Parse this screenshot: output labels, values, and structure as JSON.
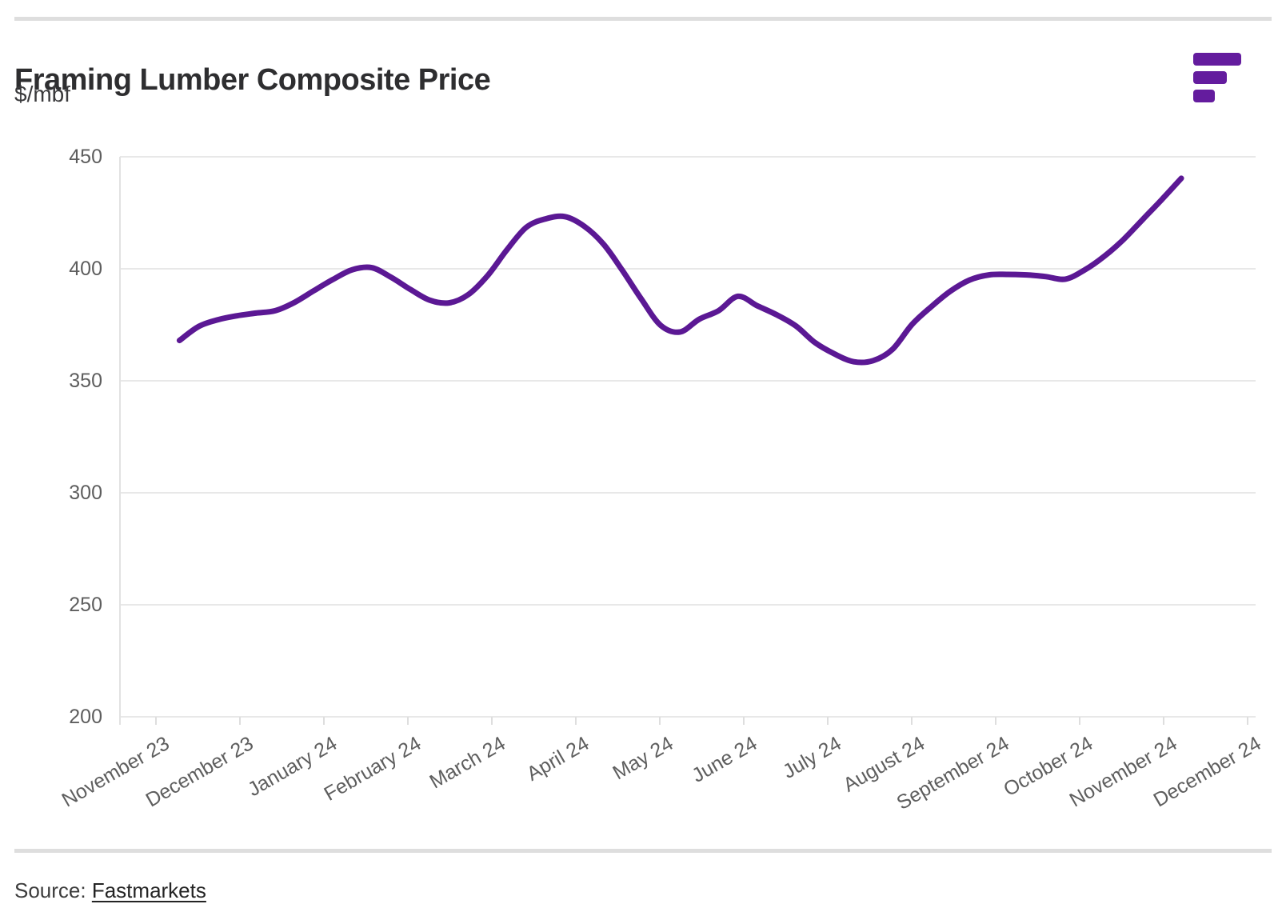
{
  "header": {
    "title": "Framing Lumber Composite Price",
    "subtitle": "$/mbf"
  },
  "branding": {
    "logo_icon": "fastmarkets-logo",
    "logo_color": "#641c9e"
  },
  "footer": {
    "source_label": "Source:",
    "source_link": "Fastmarkets"
  },
  "chart_data": {
    "type": "line",
    "title": "Framing Lumber Composite Price",
    "ylabel": "$/mbf",
    "xlabel": "",
    "ylim": [
      200,
      450
    ],
    "y_ticks": [
      450,
      400,
      350,
      300,
      250,
      200
    ],
    "x_tick_labels": [
      "November 23",
      "December 23",
      "January 24",
      "February 24",
      "March 24",
      "April 24",
      "May 24",
      "June 24",
      "July 24",
      "August 24",
      "September 24",
      "October 24",
      "November 24",
      "December 24"
    ],
    "x_axis_unit": "months since the November 23 tick (0 = November 23, 13 = December 24), weekly cadence",
    "grid": "horizontal",
    "legend": "none",
    "line_color": "#5b1894",
    "series": [
      {
        "name": "Framing Lumber Composite Price ($/mbf)",
        "points": [
          [
            0.28,
            368.0
          ],
          [
            0.51,
            374.3
          ],
          [
            0.74,
            377.3
          ],
          [
            0.96,
            379.0
          ],
          [
            1.19,
            380.2
          ],
          [
            1.42,
            381.3
          ],
          [
            1.65,
            385.0
          ],
          [
            1.88,
            390.2
          ],
          [
            2.11,
            395.3
          ],
          [
            2.34,
            399.6
          ],
          [
            2.57,
            400.5
          ],
          [
            2.8,
            396.2
          ],
          [
            3.03,
            390.8
          ],
          [
            3.26,
            386.0
          ],
          [
            3.49,
            384.8
          ],
          [
            3.72,
            388.5
          ],
          [
            3.95,
            397.0
          ],
          [
            4.18,
            408.5
          ],
          [
            4.41,
            418.5
          ],
          [
            4.64,
            422.3
          ],
          [
            4.87,
            423.3
          ],
          [
            5.1,
            419.0
          ],
          [
            5.33,
            411.0
          ],
          [
            5.55,
            399.5
          ],
          [
            5.78,
            386.5
          ],
          [
            6.01,
            374.8
          ],
          [
            6.24,
            371.8
          ],
          [
            6.47,
            377.5
          ],
          [
            6.7,
            381.3
          ],
          [
            6.93,
            387.7
          ],
          [
            7.16,
            383.5
          ],
          [
            7.39,
            379.5
          ],
          [
            7.62,
            374.5
          ],
          [
            7.85,
            367.0
          ],
          [
            8.08,
            362.0
          ],
          [
            8.31,
            358.5
          ],
          [
            8.54,
            359.0
          ],
          [
            8.77,
            364.0
          ],
          [
            9.0,
            375.0
          ],
          [
            9.23,
            383.0
          ],
          [
            9.46,
            390.0
          ],
          [
            9.69,
            395.0
          ],
          [
            9.92,
            397.3
          ],
          [
            10.14,
            397.5
          ],
          [
            10.37,
            397.3
          ],
          [
            10.6,
            396.5
          ],
          [
            10.83,
            395.4
          ],
          [
            11.06,
            399.5
          ],
          [
            11.29,
            405.5
          ],
          [
            11.52,
            413.0
          ],
          [
            11.75,
            422.0
          ],
          [
            11.98,
            431.0
          ],
          [
            12.21,
            440.4
          ]
        ]
      }
    ]
  }
}
